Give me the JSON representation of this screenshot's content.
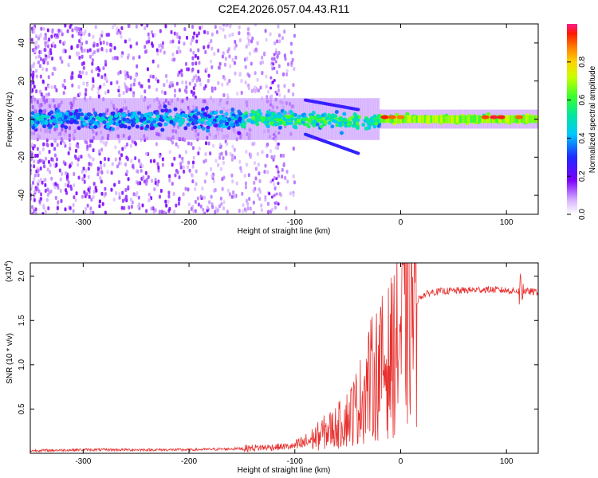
{
  "figure_title": "C2E4.2026.057.04.43.R11",
  "colorbar": {
    "label": "Normalized spectral amplitude",
    "ticks": [
      "0.0",
      "0.2",
      "0.4",
      "0.6",
      "0.8"
    ],
    "tick_values": [
      0.0,
      0.2,
      0.4,
      0.6,
      0.8
    ],
    "range": [
      0,
      1
    ]
  },
  "chart_data": [
    {
      "type": "heatmap",
      "name": "spectrogram",
      "title": "C2E4.2026.057.04.43.R11",
      "xlabel": "Height of straight line (km)",
      "ylabel": "Frequency (Hz)",
      "xlim": [
        -350,
        130
      ],
      "ylim": [
        -50,
        50
      ],
      "xticks": [
        -300,
        -200,
        -100,
        0,
        100
      ],
      "xtick_labels": [
        "-300",
        "-200",
        "-100",
        "0",
        "100"
      ],
      "yticks": [
        -40,
        -20,
        0,
        20,
        40
      ],
      "ytick_labels": [
        "-40",
        "-20",
        "0",
        "20",
        "40"
      ],
      "features": [
        {
          "name": "carrier line",
          "x_range": [
            -350,
            130
          ],
          "frequency_hz": 0,
          "peak_amplitude": 1.0
        },
        {
          "name": "upper sideband",
          "x_range": [
            -90,
            -40
          ],
          "frequency_hz": [
            10,
            5
          ]
        },
        {
          "name": "lower sideband",
          "x_range": [
            -90,
            -40
          ],
          "frequency_hz": [
            -8,
            -18
          ]
        }
      ]
    },
    {
      "type": "line",
      "name": "snr",
      "xlabel": "Height of straight line (km)",
      "ylabel": "SNR (10 * v/v)",
      "y_scale_label": "(x10",
      "y_scale_exp": "4",
      "y_scale_suffix": ")",
      "xlim": [
        -350,
        130
      ],
      "ylim": [
        0,
        2.15
      ],
      "xticks": [
        -300,
        -200,
        -100,
        0,
        100
      ],
      "xtick_labels": [
        "-300",
        "-200",
        "-100",
        "0",
        "100"
      ],
      "yticks": [
        0.5,
        1.0,
        1.5,
        2.0
      ],
      "ytick_labels": [
        "0.5",
        "1.0",
        "1.5",
        "2.0"
      ],
      "color": "#e8312f",
      "series": [
        {
          "name": "SNR",
          "x": [
            -350,
            -300,
            -250,
            -200,
            -160,
            -140,
            -120,
            -100,
            -90,
            -80,
            -70,
            -60,
            -50,
            -40,
            -30,
            -20,
            -10,
            0,
            10,
            20,
            30,
            40,
            60,
            80,
            100,
            115,
            130
          ],
          "y": [
            0.03,
            0.04,
            0.04,
            0.04,
            0.05,
            0.06,
            0.07,
            0.08,
            0.12,
            0.18,
            0.25,
            0.3,
            0.4,
            0.55,
            0.8,
            0.95,
            1.05,
            1.35,
            1.65,
            1.78,
            1.82,
            1.83,
            1.84,
            1.85,
            1.84,
            1.83,
            1.82
          ]
        }
      ]
    }
  ]
}
